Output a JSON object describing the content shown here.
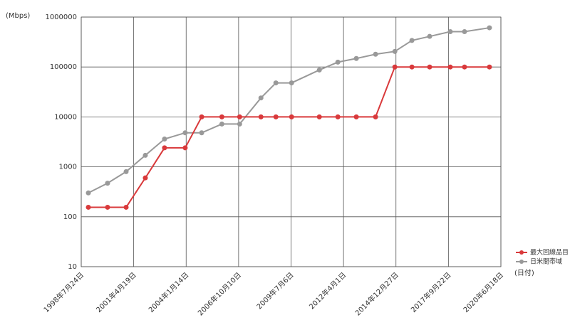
{
  "chart_data": {
    "type": "line",
    "y_label": "(Mbps)",
    "x_label": "(日付)",
    "log_y": true,
    "grid": true,
    "x": [
      "1998-12-07",
      "1999-12-08",
      "2000-11-26",
      "2001-11-27",
      "2002-11-28",
      "2003-12-27",
      "2004-11-05",
      "2005-11-25",
      "2006-10-30",
      "2007-12-10",
      "2008-09-20",
      "2009-07-16",
      "2010-12-27",
      "2011-12-15",
      "2012-12-01",
      "2013-12-03",
      "2014-12-05",
      "2015-10-27",
      "2016-09-29",
      "2017-10-27",
      "2018-07-26",
      "2019-11-13"
    ],
    "series": [
      {
        "name": "最大回線品目",
        "color": "#d9393b",
        "values": [
          155,
          155,
          155,
          600,
          2400,
          2400,
          10000,
          10000,
          10000,
          10000,
          10000,
          10000,
          10000,
          10000,
          10000,
          10000,
          100000,
          100000,
          100000,
          100000,
          100000,
          100000
        ]
      },
      {
        "name": "日米間帯域",
        "color": "#999999",
        "values": [
          300,
          470,
          800,
          1700,
          3600,
          4800,
          4800,
          7200,
          7200,
          24000,
          48000,
          48000,
          87000,
          125000,
          148000,
          180000,
          205000,
          340000,
          410000,
          510000,
          510000,
          610000
        ]
      }
    ],
    "xlim": [
      "1998-07-24",
      "2020-06-18"
    ],
    "xticks": [
      {
        "value": "1998-07-24",
        "label": "1998年7月24日"
      },
      {
        "value": "2001-04-19",
        "label": "2001年4月19日"
      },
      {
        "value": "2004-01-14",
        "label": "2004年1月14日"
      },
      {
        "value": "2006-10-10",
        "label": "2006年10月10日"
      },
      {
        "value": "2009-07-06",
        "label": "2009年7月6日"
      },
      {
        "value": "2012-04-01",
        "label": "2012年4月1日"
      },
      {
        "value": "2014-12-27",
        "label": "2014年12月27日"
      },
      {
        "value": "2017-09-22",
        "label": "2017年9月22日"
      },
      {
        "value": "2020-06-18",
        "label": "2020年6月18日"
      }
    ],
    "ylim": [
      10,
      1000000
    ],
    "yticks": [
      10,
      100,
      1000,
      10000,
      100000,
      1000000
    ]
  }
}
